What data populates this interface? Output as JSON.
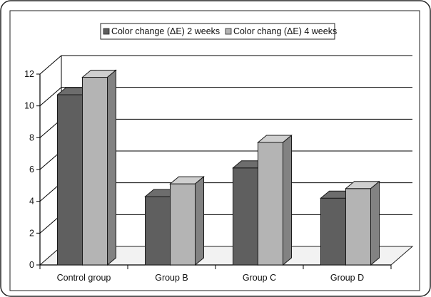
{
  "chart_data": {
    "type": "bar",
    "categories": [
      "Control group",
      "Group B",
      "Group C",
      "Group D"
    ],
    "series": [
      {
        "name": "Color change (ΔE) 2 weeks",
        "values": [
          10.7,
          4.3,
          6.1,
          4.2
        ]
      },
      {
        "name": "Color chang (ΔE) 4 weeks",
        "values": [
          11.8,
          5.1,
          7.7,
          4.8
        ]
      }
    ],
    "ylim": [
      0,
      12
    ],
    "yticks": [
      "0",
      "2",
      "4",
      "6",
      "8",
      "10",
      "12"
    ],
    "grid": true,
    "legend_position": "top",
    "title": "",
    "xlabel": "",
    "ylabel": ""
  },
  "colors": {
    "series_2_weeks": "#5f5f5f",
    "series_4_weeks": "#b4b4b4",
    "floor": "#f2f2f2",
    "grid": "#000000"
  }
}
